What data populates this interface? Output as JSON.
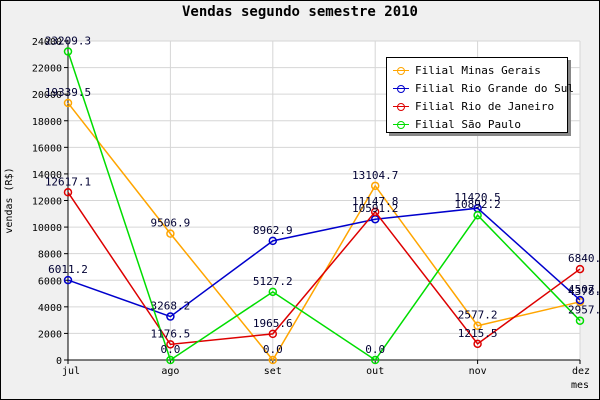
{
  "chart_data": {
    "type": "line",
    "title": "Vendas segundo semestre 2010",
    "xlabel": "mes",
    "ylabel": "vendas (R$)",
    "categories": [
      "jul",
      "ago",
      "set",
      "out",
      "nov",
      "dez"
    ],
    "ylim": [
      0,
      24000
    ],
    "yticks": [
      0,
      2000,
      4000,
      6000,
      8000,
      10000,
      12000,
      14000,
      16000,
      18000,
      20000,
      22000,
      24000
    ],
    "legend_position": "top-right",
    "grid": true,
    "series": [
      {
        "name": "Filial Minas Gerais",
        "color": "#ffa500",
        "values": [
          19339.5,
          9506.9,
          0.0,
          13104.7,
          2577.2,
          4378.0
        ],
        "labels": [
          "19339.5",
          "9506.9",
          "0.0",
          "13104.7",
          "2577.2",
          "4378.0"
        ]
      },
      {
        "name": "Filial Rio Grande do Sul",
        "color": "#0000cc",
        "values": [
          6011.2,
          3268.2,
          8962.9,
          10591.2,
          11420.5,
          4507.1
        ],
        "labels": [
          "6011.2",
          "3268.2",
          "8962.9",
          "10591.2",
          "11420.5",
          "4507.1"
        ]
      },
      {
        "name": "Filial Rio de Janeiro",
        "color": "#dd0000",
        "values": [
          12617.1,
          1176.5,
          1965.6,
          11147.8,
          1215.5,
          6840.6
        ],
        "labels": [
          "12617.1",
          "1176.5",
          "1965.6",
          "11147.8",
          "1215.5",
          "6840.6"
        ]
      },
      {
        "name": "Filial São Paulo",
        "color": "#00dd00",
        "values": [
          23209.3,
          0.0,
          5127.2,
          0.0,
          10892.2,
          2957.6
        ],
        "labels": [
          "23209.3",
          "0.0",
          "5127.2",
          "0.0",
          "10892.2",
          "2957.6"
        ]
      }
    ]
  }
}
